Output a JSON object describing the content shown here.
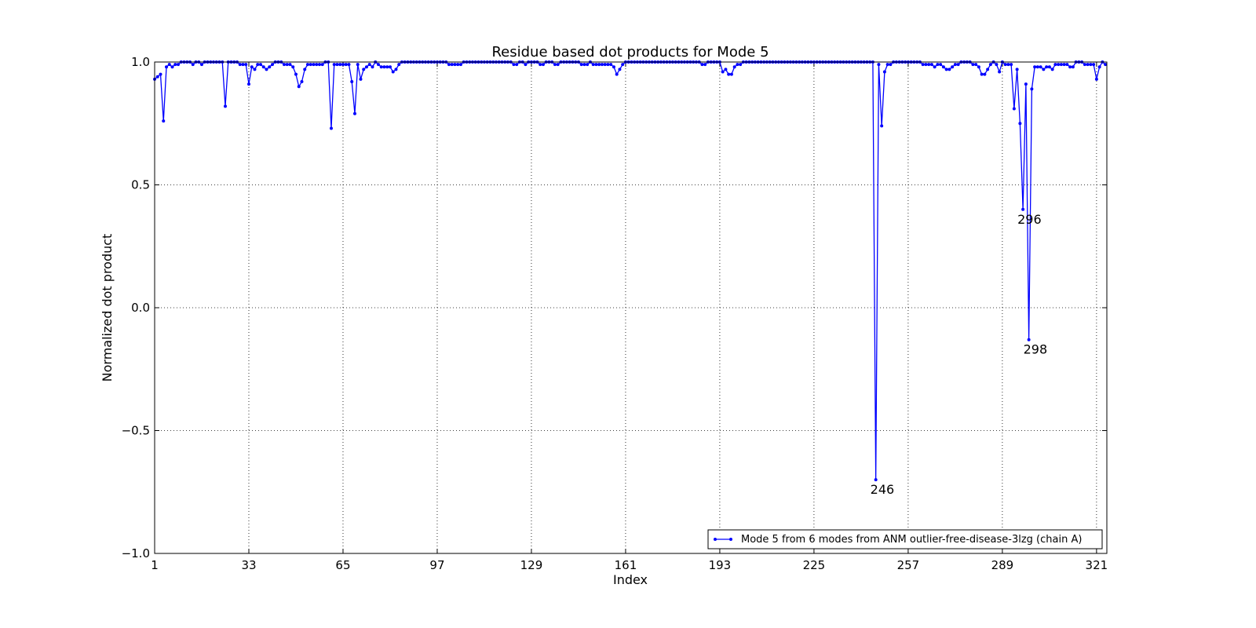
{
  "chart_data": {
    "type": "line",
    "title": "Residue based dot products for Mode 5",
    "xlabel": "Index",
    "ylabel": "Normalized dot product",
    "x": [
      1,
      2,
      3,
      4,
      5,
      6,
      7,
      8,
      9,
      10,
      11,
      12,
      13,
      14,
      15,
      16,
      17,
      18,
      19,
      20,
      21,
      22,
      23,
      24,
      25,
      26,
      27,
      28,
      29,
      30,
      31,
      32,
      33,
      34,
      35,
      36,
      37,
      38,
      39,
      40,
      41,
      42,
      43,
      44,
      45,
      46,
      47,
      48,
      49,
      50,
      51,
      52,
      53,
      54,
      55,
      56,
      57,
      58,
      59,
      60,
      61,
      62,
      63,
      64,
      65,
      66,
      67,
      68,
      69,
      70,
      71,
      72,
      73,
      74,
      75,
      76,
      77,
      78,
      79,
      80,
      81,
      82,
      83,
      84,
      85,
      86,
      87,
      88,
      89,
      90,
      91,
      92,
      93,
      94,
      95,
      96,
      97,
      98,
      99,
      100,
      101,
      102,
      103,
      104,
      105,
      106,
      107,
      108,
      109,
      110,
      111,
      112,
      113,
      114,
      115,
      116,
      117,
      118,
      119,
      120,
      121,
      122,
      123,
      124,
      125,
      126,
      127,
      128,
      129,
      130,
      131,
      132,
      133,
      134,
      135,
      136,
      137,
      138,
      139,
      140,
      141,
      142,
      143,
      144,
      145,
      146,
      147,
      148,
      149,
      150,
      151,
      152,
      153,
      154,
      155,
      156,
      157,
      158,
      159,
      160,
      161,
      162,
      163,
      164,
      165,
      166,
      167,
      168,
      169,
      170,
      171,
      172,
      173,
      174,
      175,
      176,
      177,
      178,
      179,
      180,
      181,
      182,
      183,
      184,
      185,
      186,
      187,
      188,
      189,
      190,
      191,
      192,
      193,
      194,
      195,
      196,
      197,
      198,
      199,
      200,
      201,
      202,
      203,
      204,
      205,
      206,
      207,
      208,
      209,
      210,
      211,
      212,
      213,
      214,
      215,
      216,
      217,
      218,
      219,
      220,
      221,
      222,
      223,
      224,
      225,
      226,
      227,
      228,
      229,
      230,
      231,
      232,
      233,
      234,
      235,
      236,
      237,
      238,
      239,
      240,
      241,
      242,
      243,
      244,
      245,
      246,
      247,
      248,
      249,
      250,
      251,
      252,
      253,
      254,
      255,
      256,
      257,
      258,
      259,
      260,
      261,
      262,
      263,
      264,
      265,
      266,
      267,
      268,
      269,
      270,
      271,
      272,
      273,
      274,
      275,
      276,
      277,
      278,
      279,
      280,
      281,
      282,
      283,
      284,
      285,
      286,
      287,
      288,
      289,
      290,
      291,
      292,
      293,
      294,
      295,
      296,
      297,
      298,
      299,
      300,
      301,
      302,
      303,
      304,
      305,
      306,
      307,
      308,
      309,
      310,
      311,
      312,
      313,
      314,
      315,
      316,
      317,
      318,
      319,
      320,
      321,
      322,
      323,
      324
    ],
    "series": [
      {
        "name": "Mode 5 from 6 modes from ANM outlier-free-disease-3lzg (chain A)",
        "color": "#0000ff",
        "values": [
          0.93,
          0.94,
          0.95,
          0.76,
          0.98,
          0.99,
          0.98,
          0.99,
          0.99,
          1.0,
          1.0,
          1.0,
          1.0,
          0.99,
          1.0,
          1.0,
          0.99,
          1.0,
          1.0,
          1.0,
          1.0,
          1.0,
          1.0,
          1.0,
          0.82,
          1.0,
          1.0,
          1.0,
          1.0,
          0.99,
          0.99,
          0.99,
          0.91,
          0.98,
          0.97,
          0.99,
          0.99,
          0.98,
          0.97,
          0.98,
          0.99,
          1.0,
          1.0,
          1.0,
          0.99,
          0.99,
          0.99,
          0.98,
          0.95,
          0.9,
          0.92,
          0.97,
          0.99,
          0.99,
          0.99,
          0.99,
          0.99,
          0.99,
          1.0,
          1.0,
          0.73,
          0.99,
          0.99,
          0.99,
          0.99,
          0.99,
          0.99,
          0.92,
          0.79,
          0.99,
          0.93,
          0.97,
          0.98,
          0.99,
          0.98,
          1.0,
          0.99,
          0.98,
          0.98,
          0.98,
          0.98,
          0.96,
          0.97,
          0.99,
          1.0,
          1.0,
          1.0,
          1.0,
          1.0,
          1.0,
          1.0,
          1.0,
          1.0,
          1.0,
          1.0,
          1.0,
          1.0,
          1.0,
          1.0,
          1.0,
          0.99,
          0.99,
          0.99,
          0.99,
          0.99,
          1.0,
          1.0,
          1.0,
          1.0,
          1.0,
          1.0,
          1.0,
          1.0,
          1.0,
          1.0,
          1.0,
          1.0,
          1.0,
          1.0,
          1.0,
          1.0,
          1.0,
          0.99,
          0.99,
          1.0,
          1.0,
          0.99,
          1.0,
          1.0,
          1.0,
          1.0,
          0.99,
          0.99,
          1.0,
          1.0,
          1.0,
          0.99,
          0.99,
          1.0,
          1.0,
          1.0,
          1.0,
          1.0,
          1.0,
          1.0,
          0.99,
          0.99,
          0.99,
          1.0,
          0.99,
          0.99,
          0.99,
          0.99,
          0.99,
          0.99,
          0.99,
          0.98,
          0.95,
          0.97,
          0.99,
          1.0,
          1.0,
          1.0,
          1.0,
          1.0,
          1.0,
          1.0,
          1.0,
          1.0,
          1.0,
          1.0,
          1.0,
          1.0,
          1.0,
          1.0,
          1.0,
          1.0,
          1.0,
          1.0,
          1.0,
          1.0,
          1.0,
          1.0,
          1.0,
          1.0,
          1.0,
          0.99,
          0.99,
          1.0,
          1.0,
          1.0,
          1.0,
          1.0,
          0.96,
          0.97,
          0.95,
          0.95,
          0.98,
          0.99,
          0.99,
          1.0,
          1.0,
          1.0,
          1.0,
          1.0,
          1.0,
          1.0,
          1.0,
          1.0,
          1.0,
          1.0,
          1.0,
          1.0,
          1.0,
          1.0,
          1.0,
          1.0,
          1.0,
          1.0,
          1.0,
          1.0,
          1.0,
          1.0,
          1.0,
          1.0,
          1.0,
          1.0,
          1.0,
          1.0,
          1.0,
          1.0,
          1.0,
          1.0,
          1.0,
          1.0,
          1.0,
          1.0,
          1.0,
          1.0,
          1.0,
          1.0,
          1.0,
          1.0,
          1.0,
          1.0,
          -0.7,
          0.99,
          0.74,
          0.96,
          0.99,
          0.99,
          1.0,
          1.0,
          1.0,
          1.0,
          1.0,
          1.0,
          1.0,
          1.0,
          1.0,
          1.0,
          0.99,
          0.99,
          0.99,
          0.99,
          0.98,
          0.99,
          0.99,
          0.98,
          0.97,
          0.97,
          0.98,
          0.99,
          0.99,
          1.0,
          1.0,
          1.0,
          1.0,
          0.99,
          0.99,
          0.98,
          0.95,
          0.95,
          0.97,
          0.99,
          1.0,
          0.99,
          0.96,
          1.0,
          0.99,
          0.99,
          0.99,
          0.81,
          0.97,
          0.75,
          0.4,
          0.91,
          -0.13,
          0.89,
          0.98,
          0.98,
          0.98,
          0.97,
          0.98,
          0.98,
          0.97,
          0.99,
          0.99,
          0.99,
          0.99,
          0.99,
          0.98,
          0.98,
          1.0,
          1.0,
          1.0,
          0.99,
          0.99,
          0.99,
          0.99,
          0.93,
          0.98,
          1.0,
          0.99
        ]
      }
    ],
    "xlim": [
      1,
      324.5
    ],
    "xticks": [
      1,
      33,
      65,
      97,
      129,
      161,
      193,
      225,
      257,
      289,
      321
    ],
    "ylim": [
      -1,
      1
    ],
    "yticks": [
      {
        "value": -1,
        "label": "−1.0"
      },
      {
        "value": -0.5,
        "label": "−0.5"
      },
      {
        "value": 0,
        "label": "0.0"
      },
      0.5,
      {
        "value": 1,
        "label": "1.0"
      }
    ],
    "grid": true,
    "legend": "lower right",
    "annotations": [
      {
        "text": "246",
        "x": 246,
        "y": -0.7
      },
      {
        "text": "296",
        "x": 296,
        "y": 0.4
      },
      {
        "text": "298",
        "x": 298,
        "y": -0.13
      }
    ]
  }
}
